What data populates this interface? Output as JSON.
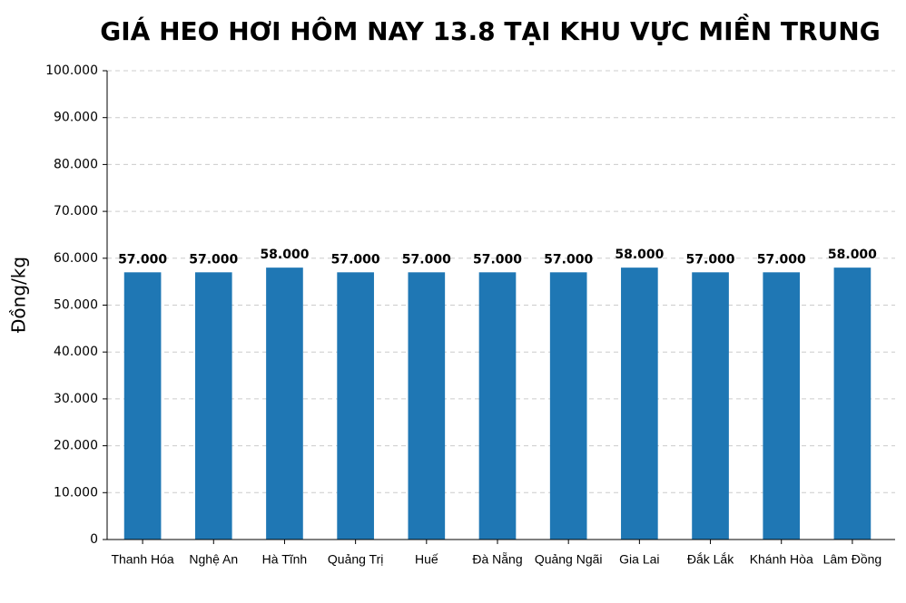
{
  "chart_data": {
    "type": "bar",
    "title": "GIÁ HEO HƠI HÔM NAY 13.8 TẠI KHU VỰC MIỀN TRUNG",
    "y_label": "Đồng/kg",
    "categories": [
      "Thanh Hóa",
      "Nghệ An",
      "Hà Tĩnh",
      "Quảng Trị",
      "Huế",
      "Đà Nẵng",
      "Quảng Ngãi",
      "Gia Lai",
      "Đắk Lắk",
      "Khánh Hòa",
      "Lâm Đồng"
    ],
    "values": [
      57000,
      57000,
      58000,
      57000,
      57000,
      57000,
      57000,
      58000,
      57000,
      57000,
      58000
    ],
    "value_labels": [
      "57.000",
      "57.000",
      "58.000",
      "57.000",
      "57.000",
      "57.000",
      "57.000",
      "58.000",
      "57.000",
      "57.000",
      "58.000"
    ],
    "color": "#1f77b4",
    "ylim": [
      0,
      100000
    ],
    "yticks": [
      0,
      {
        "value": 10000,
        "label": "10.000"
      },
      {
        "value": 20000,
        "label": "20.000"
      },
      {
        "value": 30000,
        "label": "30.000"
      },
      {
        "value": 40000,
        "label": "40.000"
      },
      {
        "value": 50000,
        "label": "50.000"
      },
      {
        "value": 60000,
        "label": "60.000"
      },
      {
        "value": 70000,
        "label": "70.000"
      },
      {
        "value": 80000,
        "label": "80.000"
      },
      {
        "value": 90000,
        "label": "90.000"
      },
      {
        "value": 100000,
        "label": "100.000"
      }
    ],
    "grid": true
  }
}
